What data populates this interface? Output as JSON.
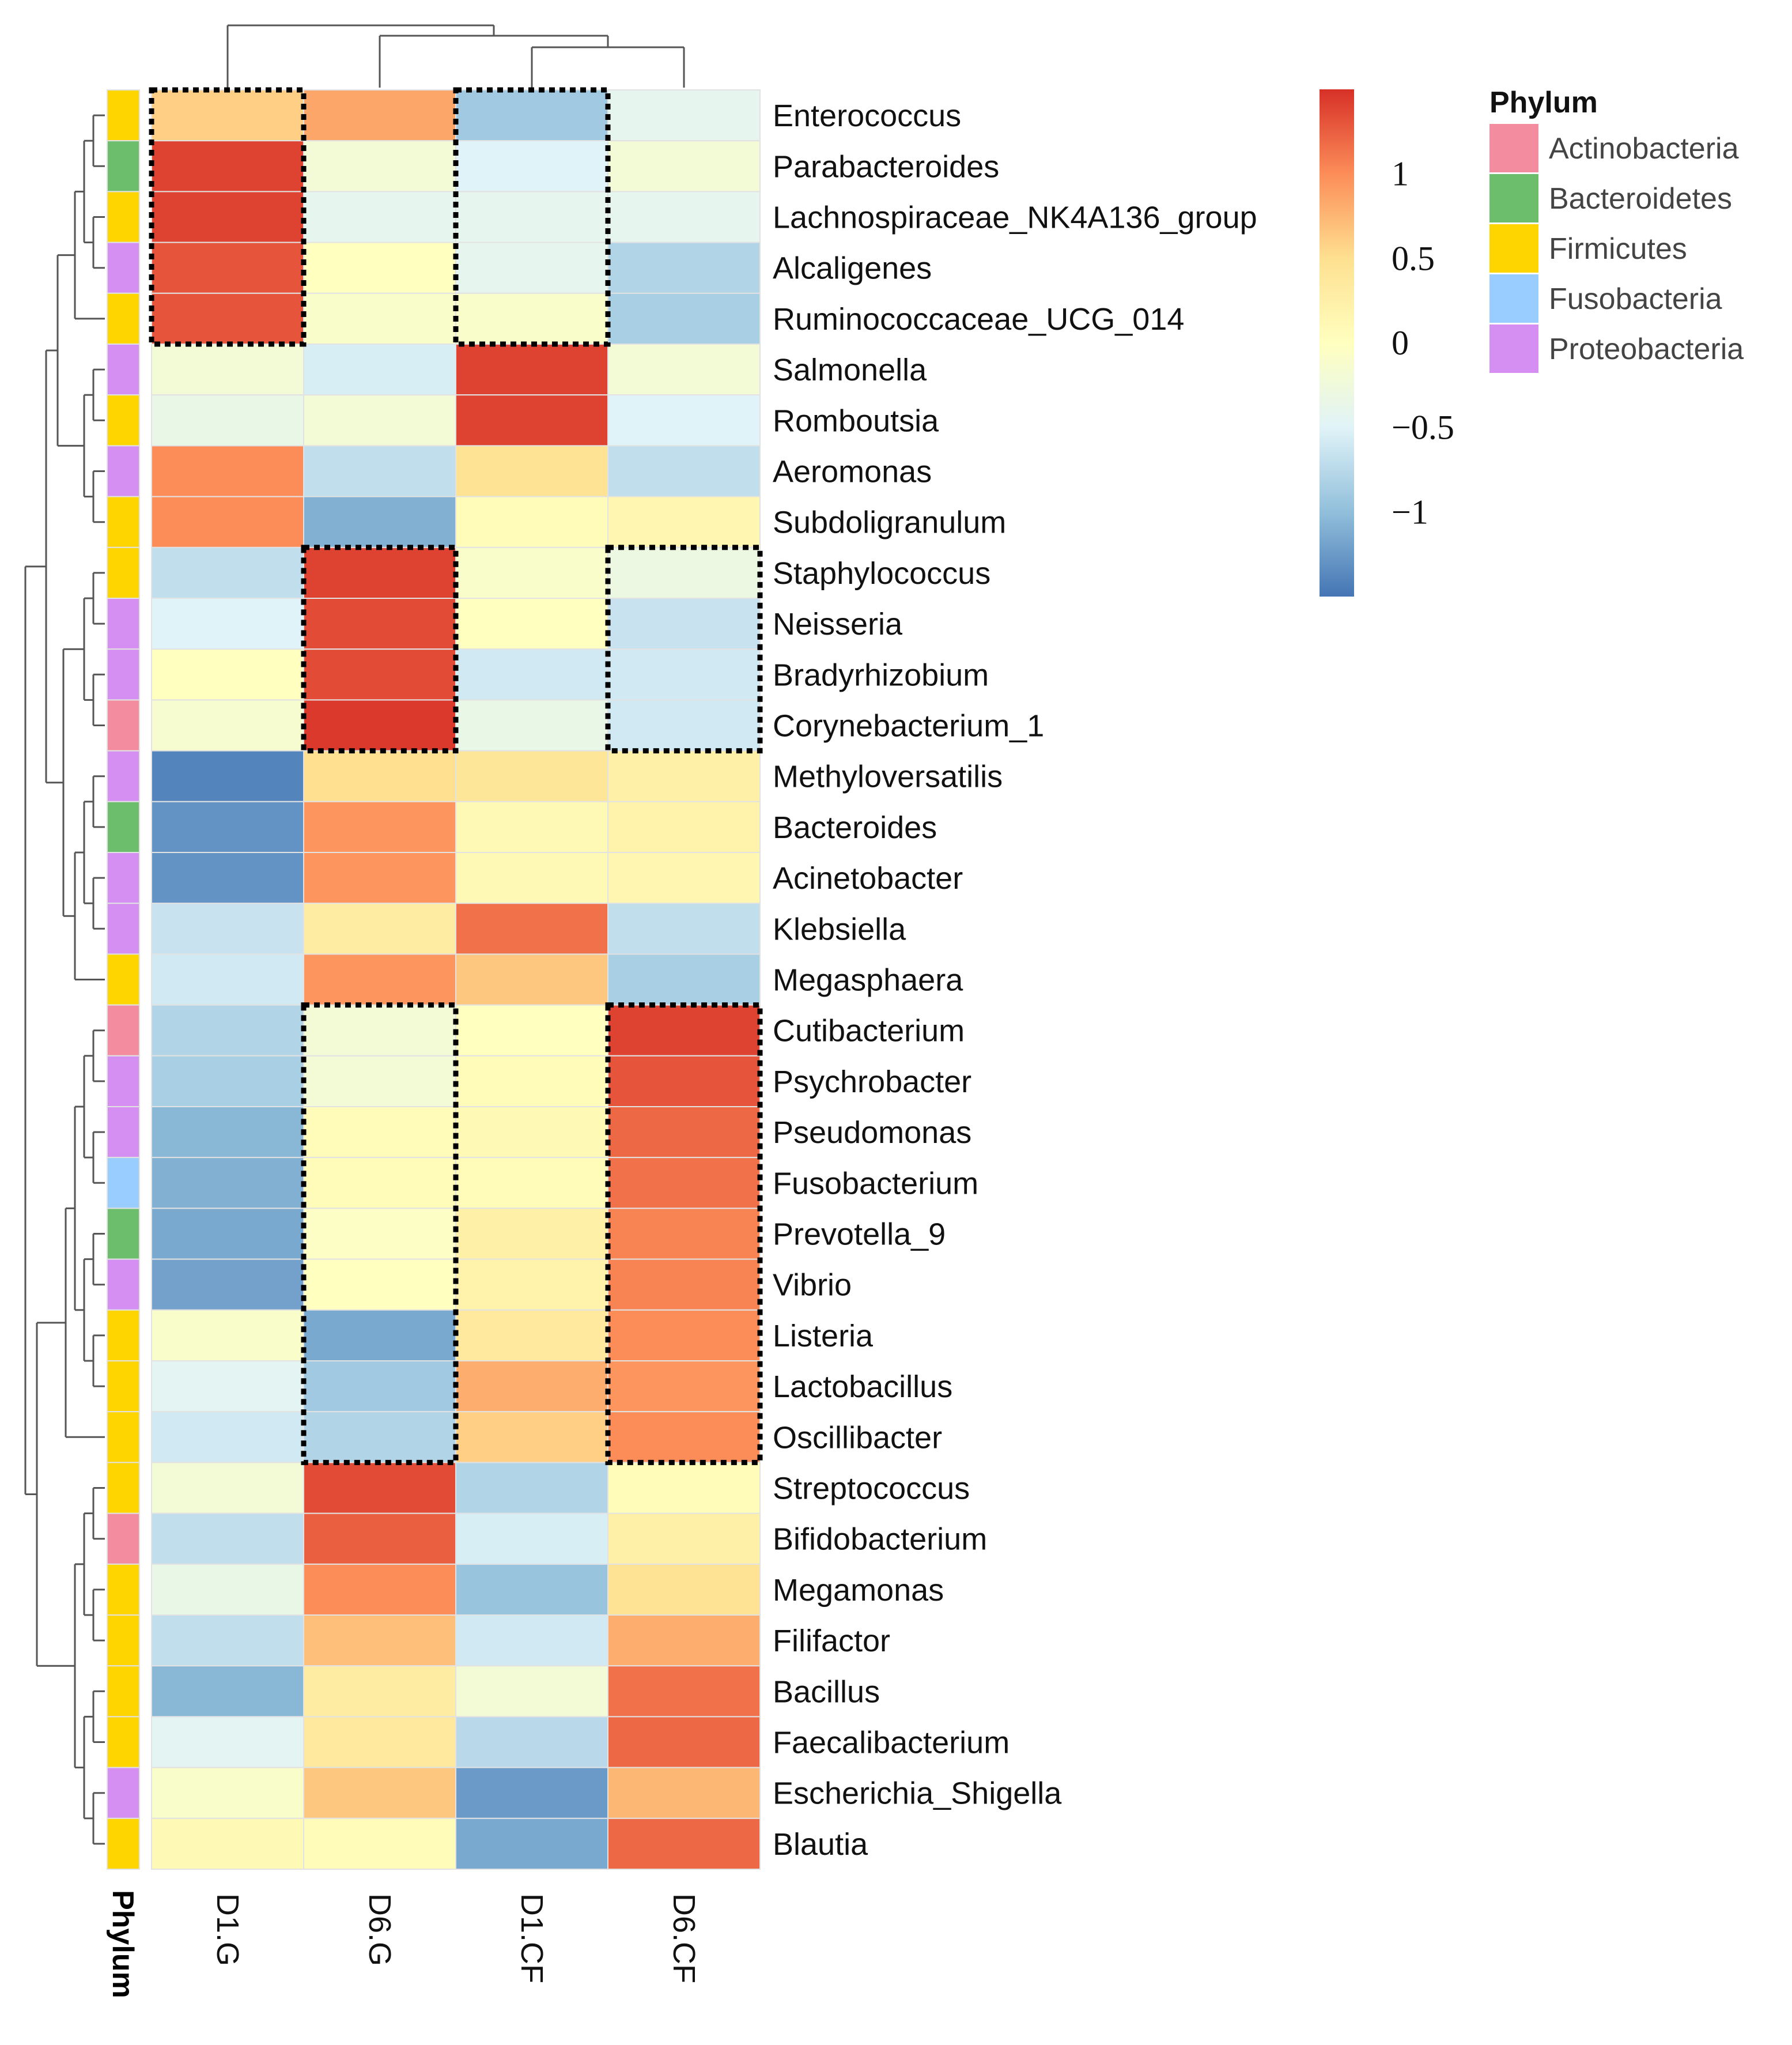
{
  "chart_data": {
    "type": "heatmap",
    "columns": [
      "D1.G",
      "D6.G",
      "D1.CF",
      "D6.CF"
    ],
    "rows": [
      "Enterococcus",
      "Parabacteroides",
      "Lachnospiraceae_NK4A136_group",
      "Alcaligenes",
      "Ruminococcaceae_UCG_014",
      "Salmonella",
      "Romboutsia",
      "Aeromonas",
      "Subdoligranulum",
      "Staphylococcus",
      "Neisseria",
      "Bradyrhizobium",
      "Corynebacterium_1",
      "Methyloversatilis",
      "Bacteroides",
      "Acinetobacter",
      "Klebsiella",
      "Megasphaera",
      "Cutibacterium",
      "Psychrobacter",
      "Pseudomonas",
      "Fusobacterium",
      "Prevotella_9",
      "Vibrio",
      "Listeria",
      "Lactobacillus",
      "Oscillibacter",
      "Streptococcus",
      "Bifidobacterium",
      "Megamonas",
      "Filifactor",
      "Bacillus",
      "Faecalibacterium",
      "Escherichia_Shigella",
      "Blautia"
    ],
    "values": [
      [
        0.6,
        0.85,
        -0.9,
        -0.4
      ],
      [
        1.4,
        -0.2,
        -0.5,
        -0.2
      ],
      [
        1.4,
        -0.4,
        -0.4,
        -0.4
      ],
      [
        1.3,
        0.0,
        -0.4,
        -0.8
      ],
      [
        1.3,
        -0.1,
        -0.1,
        -0.85
      ],
      [
        -0.2,
        -0.55,
        1.4,
        -0.2
      ],
      [
        -0.35,
        -0.2,
        1.4,
        -0.5
      ],
      [
        1.0,
        -0.7,
        0.45,
        -0.7
      ],
      [
        1.0,
        -1.1,
        0.05,
        0.15
      ],
      [
        -0.7,
        1.4,
        -0.1,
        -0.3
      ],
      [
        -0.5,
        1.35,
        0.0,
        -0.65
      ],
      [
        0.0,
        1.35,
        -0.6,
        -0.6
      ],
      [
        -0.15,
        1.45,
        -0.35,
        -0.6
      ],
      [
        -1.4,
        0.5,
        0.4,
        0.25
      ],
      [
        -1.3,
        0.95,
        0.1,
        0.2
      ],
      [
        -1.3,
        0.95,
        0.1,
        0.15
      ],
      [
        -0.65,
        0.3,
        1.15,
        -0.7
      ],
      [
        -0.6,
        0.95,
        0.65,
        -0.85
      ],
      [
        -0.8,
        -0.2,
        0.0,
        1.4
      ],
      [
        -0.85,
        -0.2,
        0.05,
        1.3
      ],
      [
        -1.05,
        0.05,
        0.1,
        1.2
      ],
      [
        -1.1,
        0.05,
        0.05,
        1.15
      ],
      [
        -1.15,
        -0.05,
        0.25,
        1.05
      ],
      [
        -1.2,
        0.0,
        0.2,
        1.05
      ],
      [
        -0.1,
        -1.15,
        0.35,
        1.0
      ],
      [
        -0.45,
        -0.9,
        0.8,
        0.95
      ],
      [
        -0.6,
        -0.8,
        0.6,
        1.0
      ],
      [
        -0.2,
        1.35,
        -0.8,
        0.05
      ],
      [
        -0.7,
        1.25,
        -0.55,
        0.25
      ],
      [
        -0.35,
        1.0,
        -0.95,
        0.45
      ],
      [
        -0.7,
        0.7,
        -0.6,
        0.8
      ],
      [
        -1.05,
        0.3,
        -0.2,
        1.15
      ],
      [
        -0.45,
        0.35,
        -0.75,
        1.2
      ],
      [
        -0.1,
        0.65,
        -1.25,
        0.75
      ],
      [
        0.1,
        0.05,
        -1.15,
        1.2
      ]
    ],
    "row_phylum": [
      "Firmicutes",
      "Bacteroidetes",
      "Firmicutes",
      "Proteobacteria",
      "Firmicutes",
      "Proteobacteria",
      "Firmicutes",
      "Proteobacteria",
      "Firmicutes",
      "Firmicutes",
      "Proteobacteria",
      "Proteobacteria",
      "Actinobacteria",
      "Proteobacteria",
      "Bacteroidetes",
      "Proteobacteria",
      "Proteobacteria",
      "Firmicutes",
      "Actinobacteria",
      "Proteobacteria",
      "Proteobacteria",
      "Fusobacteria",
      "Bacteroidetes",
      "Proteobacteria",
      "Firmicutes",
      "Firmicutes",
      "Firmicutes",
      "Firmicutes",
      "Actinobacteria",
      "Firmicutes",
      "Firmicutes",
      "Firmicutes",
      "Firmicutes",
      "Proteobacteria",
      "Firmicutes"
    ],
    "phylum_axis_label": "Phylum",
    "legend": {
      "title": "Phylum",
      "items": [
        {
          "name": "Actinobacteria",
          "color": "#F48CA0"
        },
        {
          "name": "Bacteroidetes",
          "color": "#6CBE6C"
        },
        {
          "name": "Firmicutes",
          "color": "#FFD500"
        },
        {
          "name": "Fusobacteria",
          "color": "#99CCFF"
        },
        {
          "name": "Proteobacteria",
          "color": "#D58EF2"
        }
      ]
    },
    "colorbar": {
      "range": [
        -1.5,
        1.5
      ],
      "ticks": [
        1,
        0.5,
        0,
        -0.5,
        -1
      ],
      "tick_labels": [
        "1",
        "0.5",
        "0",
        "−0.5",
        "−1"
      ],
      "colors": [
        "#4575B4",
        "#91BFDB",
        "#E0F3F8",
        "#FFFFBF",
        "#FEE090",
        "#FC8D59",
        "#D73027"
      ]
    },
    "highlight_boxes": [
      {
        "column": "D1.G",
        "rows": [
          "Enterococcus",
          "Ruminococcaceae_UCG_014"
        ]
      },
      {
        "column": "D1.CF",
        "rows": [
          "Enterococcus",
          "Ruminococcaceae_UCG_014"
        ]
      },
      {
        "column": "D6.G",
        "rows": [
          "Staphylococcus",
          "Corynebacterium_1"
        ]
      },
      {
        "column": "D6.CF",
        "rows": [
          "Staphylococcus",
          "Corynebacterium_1"
        ]
      },
      {
        "column": "D6.G",
        "rows": [
          "Cutibacterium",
          "Oscillibacter"
        ]
      },
      {
        "column": "D6.CF",
        "rows": [
          "Cutibacterium",
          "Oscillibacter"
        ]
      }
    ],
    "row_dendrogram_groups": [
      [
        "Enterococcus",
        "Parabacteroides",
        "Lachnospiraceae_NK4A136_group",
        "Alcaligenes",
        "Ruminococcaceae_UCG_014"
      ],
      [
        "Salmonella",
        "Romboutsia",
        "Aeromonas",
        "Subdoligranulum"
      ],
      [
        "Staphylococcus",
        "Neisseria",
        "Bradyrhizobium",
        "Corynebacterium_1"
      ],
      [
        "Methyloversatilis",
        "Bacteroides",
        "Acinetobacter",
        "Klebsiella",
        "Megasphaera"
      ],
      [
        "Cutibacterium",
        "Psychrobacter",
        "Pseudomonas",
        "Fusobacterium",
        "Prevotella_9",
        "Vibrio",
        "Listeria",
        "Lactobacillus",
        "Oscillibacter"
      ],
      [
        "Streptococcus",
        "Bifidobacterium",
        "Megamonas",
        "Filifactor",
        "Bacillus",
        "Faecalibacterium",
        "Escherichia_Shigella",
        "Blautia"
      ]
    ],
    "column_dendrogram": "((D1.G),((D6.G),(D1.CF,D6.CF)))"
  }
}
